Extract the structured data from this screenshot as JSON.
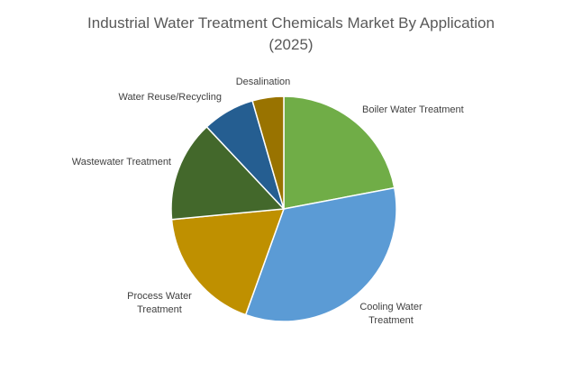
{
  "chart_data": {
    "type": "pie",
    "title": "Industrial Water Treatment Chemicals Market By Application (2025)",
    "categories": [
      "Boiler Water Treatment",
      "Cooling Water Treatment",
      "Process Water Treatment",
      "Wastewater Treatment",
      "Water Reuse/Recycling",
      "Desalination"
    ],
    "values": [
      22,
      33.5,
      18,
      14.5,
      7.5,
      4.5
    ],
    "colors": [
      "#70ad47",
      "#5b9bd5",
      "#bf9000",
      "#43682b",
      "#255e91",
      "#997300"
    ]
  }
}
